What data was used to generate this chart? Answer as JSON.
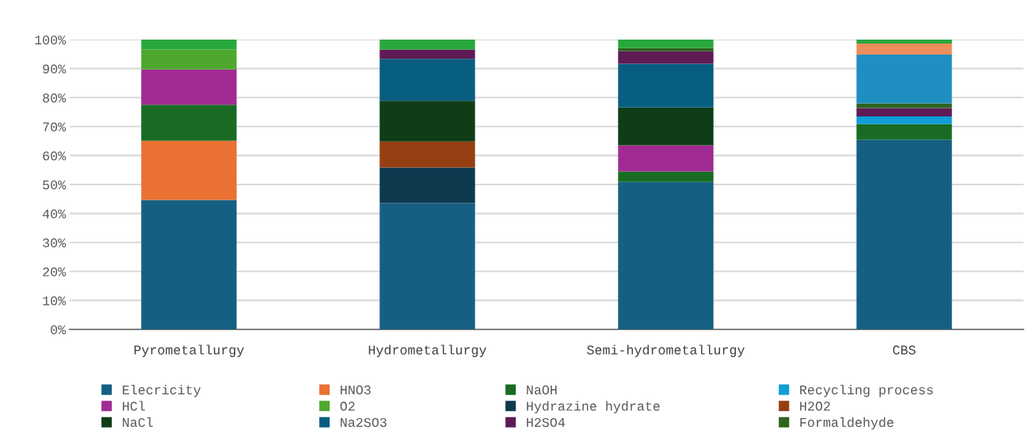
{
  "chart_data": {
    "type": "bar",
    "stacked": true,
    "categories": [
      "Pyrometallurgy",
      "Hydrometallurgy",
      "Semi-hydrometallurgy",
      "CBS"
    ],
    "series": [
      {
        "name": "Elecricity",
        "color": "#156082",
        "values": [
          44.7,
          43.6,
          50.9,
          65.5
        ]
      },
      {
        "name": "HNO3",
        "color": "#e97132",
        "values": [
          20.4,
          null,
          null,
          null
        ]
      },
      {
        "name": "NaOH",
        "color": "#196b24",
        "values": [
          12.4,
          null,
          3.6,
          5.3
        ]
      },
      {
        "name": "Recycling process",
        "color": "#0f9ed5",
        "values": [
          null,
          null,
          null,
          2.7
        ]
      },
      {
        "name": "HCl",
        "color": "#a02b93",
        "values": [
          12.2,
          null,
          9.0,
          null
        ]
      },
      {
        "name": "O2",
        "color": "#4ea72e",
        "values": [
          6.9,
          null,
          null,
          null
        ]
      },
      {
        "name": "Hydrazine hydrate",
        "color": "#0e3a50",
        "values": [
          null,
          12.3,
          null,
          null
        ]
      },
      {
        "name": "H2O2",
        "color": "#953f12",
        "values": [
          null,
          8.9,
          null,
          null
        ]
      },
      {
        "name": "NaCl",
        "color": "#0f3d17",
        "values": [
          null,
          14.1,
          13.1,
          null
        ]
      },
      {
        "name": "Na2SO3",
        "color": "#085e80",
        "values": [
          null,
          14.5,
          15.1,
          null
        ]
      },
      {
        "name": "H2SO4",
        "color": "#5e1b56",
        "values": [
          null,
          3.2,
          4.3,
          2.9
        ]
      },
      {
        "name": "Formaldehyde",
        "color": "#2e6320",
        "values": [
          null,
          null,
          1.1,
          1.6
        ]
      },
      {
        "color": "#1f8fc1",
        "values": [
          null,
          null,
          null,
          16.8
        ]
      },
      {
        "color": "#ec8e5c",
        "values": [
          null,
          null,
          null,
          3.8
        ]
      },
      {
        "color": "#28a83c",
        "values": [
          3.4,
          3.4,
          2.9,
          1.4
        ]
      }
    ],
    "ylim": [
      0,
      100
    ],
    "yticks": [
      {
        "value": 0,
        "label": "0%"
      },
      {
        "value": 10,
        "label": "10%"
      },
      {
        "value": 20,
        "label": "20%"
      },
      {
        "value": 30,
        "label": "30%"
      },
      {
        "value": 40,
        "label": "40%"
      },
      {
        "value": 50,
        "label": "50%"
      },
      {
        "value": 60,
        "label": "60%"
      },
      {
        "value": 70,
        "label": "70%"
      },
      {
        "value": 80,
        "label": "80%"
      },
      {
        "value": 90,
        "label": "90%"
      },
      {
        "value": 100,
        "label": "100%"
      }
    ],
    "grid": "y",
    "legend": "bottom"
  }
}
